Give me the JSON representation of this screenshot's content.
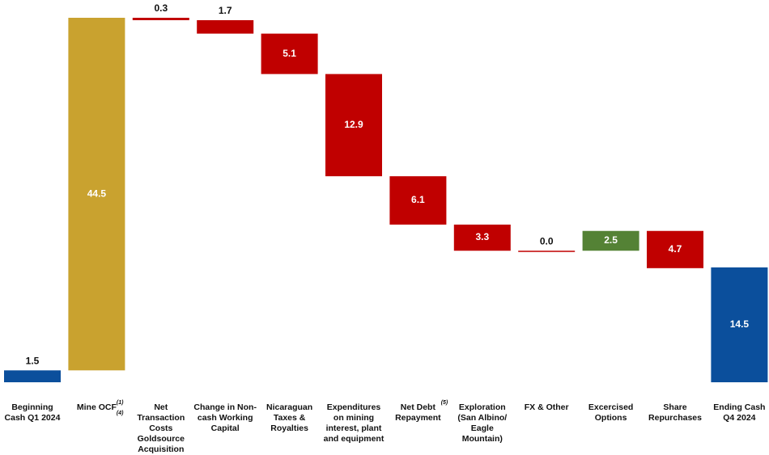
{
  "chart_data": {
    "type": "waterfall",
    "categories": [
      "Beginning Cash Q1 2024",
      "Mine OCF",
      "Net Transaction Costs Goldsource Acquisition",
      "Change in Non-cash Working Capital",
      "Nicaraguan Taxes & Royalties",
      "Expenditures on mining interest, plant and equipment",
      "Net Debt Repayment",
      "Exploration (San Albino/ Eagle Mountain)",
      "FX & Other",
      "Excercised Options",
      "Share Repurchases",
      "Ending Cash Q4 2024"
    ],
    "category_notes": [
      null,
      "(1)(4)",
      null,
      null,
      null,
      null,
      "(5)",
      null,
      null,
      null,
      null,
      null
    ],
    "measures": [
      "absolute",
      "relative",
      "relative",
      "relative",
      "relative",
      "relative",
      "relative",
      "relative",
      "relative",
      "relative",
      "relative",
      "total"
    ],
    "values": [
      1.5,
      44.5,
      -0.3,
      -1.7,
      -5.1,
      -12.9,
      -6.1,
      -3.3,
      0.0,
      2.5,
      -4.7,
      14.5
    ],
    "value_labels": [
      "1.5",
      "44.5",
      "0.3",
      "1.7",
      "5.1",
      "12.9",
      "6.1",
      "3.3",
      "0.0",
      "2.5",
      "4.7",
      "14.5"
    ],
    "colors": [
      "#0b4f9c",
      "#c9a22f",
      "#c00000",
      "#c00000",
      "#c00000",
      "#c00000",
      "#c00000",
      "#c00000",
      "#c00000",
      "#548235",
      "#c00000",
      "#0b4f9c"
    ]
  }
}
